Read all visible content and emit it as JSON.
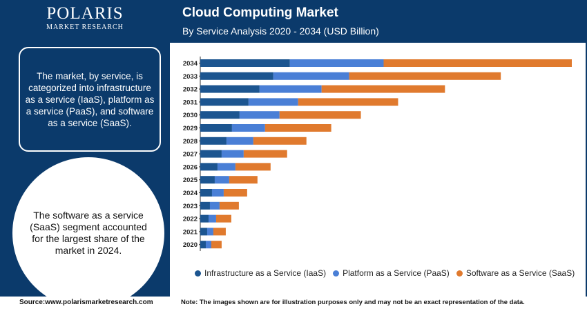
{
  "brand": {
    "logo_text": "POLARIS",
    "logo_sub": "MARKET RESEARCH"
  },
  "info_box": {
    "text": "The market, by service, is categorized into infrastructure as a service (IaaS), platform as a service (PaaS), and software as a service (SaaS)."
  },
  "highlight": {
    "text": "The software as a service (SaaS) segment accounted for the largest share of the market in 2024."
  },
  "header": {
    "title": "Cloud Computing Market",
    "subtitle": "By Service Analysis 2020 - 2034 (USD Billion)"
  },
  "footer": {
    "source": "Source:www.polarismarketresearch.com",
    "note": "Note: The images shown are for illustration purposes only and may not be an exact representation of the data."
  },
  "colors": {
    "iaas": "#1c5590",
    "paas": "#4a7fd6",
    "saas": "#e07a2e",
    "panel": "#0b3a6b"
  },
  "chart_data": {
    "type": "bar",
    "orientation": "horizontal",
    "stacked": true,
    "title": "Cloud Computing Market",
    "subtitle": "By Service Analysis 2020 - 2034 (USD Billion)",
    "xlabel": "",
    "ylabel": "",
    "grid": false,
    "legend_position": "bottom",
    "categories": [
      "2034",
      "2033",
      "2032",
      "2031",
      "2030",
      "2029",
      "2028",
      "2027",
      "2026",
      "2025",
      "2024",
      "2023",
      "2022",
      "2021",
      "2020"
    ],
    "series": [
      {
        "name": "Infrastructure as a Service (IaaS)",
        "values": [
          130,
          106,
          86,
          70,
          57,
          46,
          38,
          31,
          25,
          21,
          17,
          14,
          12,
          10,
          8
        ]
      },
      {
        "name": "Platform as a Service (PaaS)",
        "values": [
          136,
          110,
          90,
          72,
          58,
          48,
          39,
          32,
          26,
          21,
          17,
          14,
          11,
          9,
          8
        ]
      },
      {
        "name": "Software as a Service (SaaS)",
        "values": [
          273,
          220,
          179,
          145,
          118,
          96,
          77,
          63,
          51,
          41,
          34,
          28,
          22,
          18,
          15
        ]
      }
    ]
  }
}
